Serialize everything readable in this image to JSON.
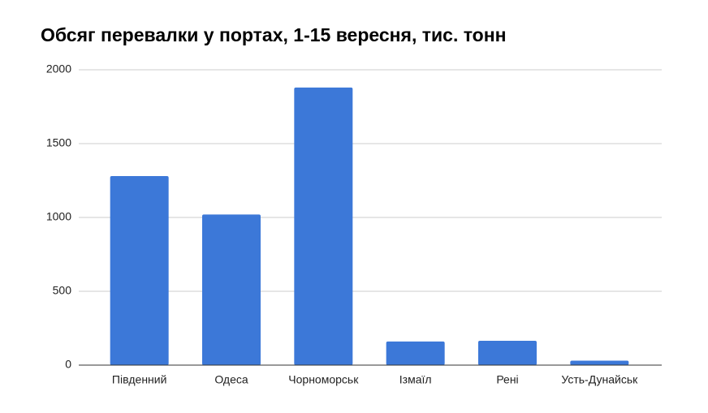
{
  "chart_data": {
    "type": "bar",
    "title": "Обсяг перевалки у портах, 1-15 вересня, тис. тонн",
    "categories": [
      "Південний",
      "Одеса",
      "Чорноморськ",
      "Ізмаїл",
      "Рені",
      "Усть-Дунайськ"
    ],
    "values": [
      1280,
      1020,
      1880,
      160,
      165,
      30
    ],
    "color": "#3c78d8",
    "ylim": [
      0,
      2000
    ],
    "yticks": [
      0,
      500,
      1000,
      1500,
      2000
    ],
    "grid": true
  }
}
